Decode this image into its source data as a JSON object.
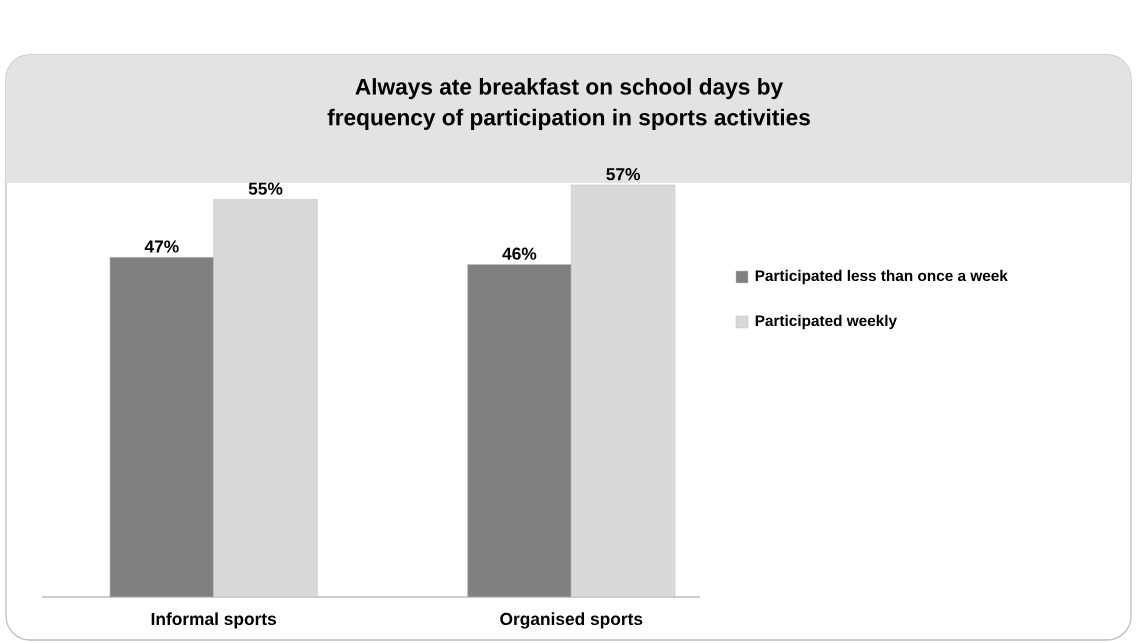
{
  "chart_data": {
    "type": "bar",
    "title": "Always ate breakfast on school days by\nfrequency of participation in sports activities",
    "categories": [
      "Informal sports",
      "Organised sports"
    ],
    "series": [
      {
        "name": "Participated less than once a week",
        "color": "#808080",
        "values": [
          47,
          46
        ],
        "value_labels": [
          "47%",
          "46%"
        ]
      },
      {
        "name": "Participated weekly",
        "color": "#d9d9d9",
        "values": [
          55,
          57
        ],
        "value_labels": [
          "55%",
          "57%"
        ]
      }
    ],
    "legend": "right"
  }
}
